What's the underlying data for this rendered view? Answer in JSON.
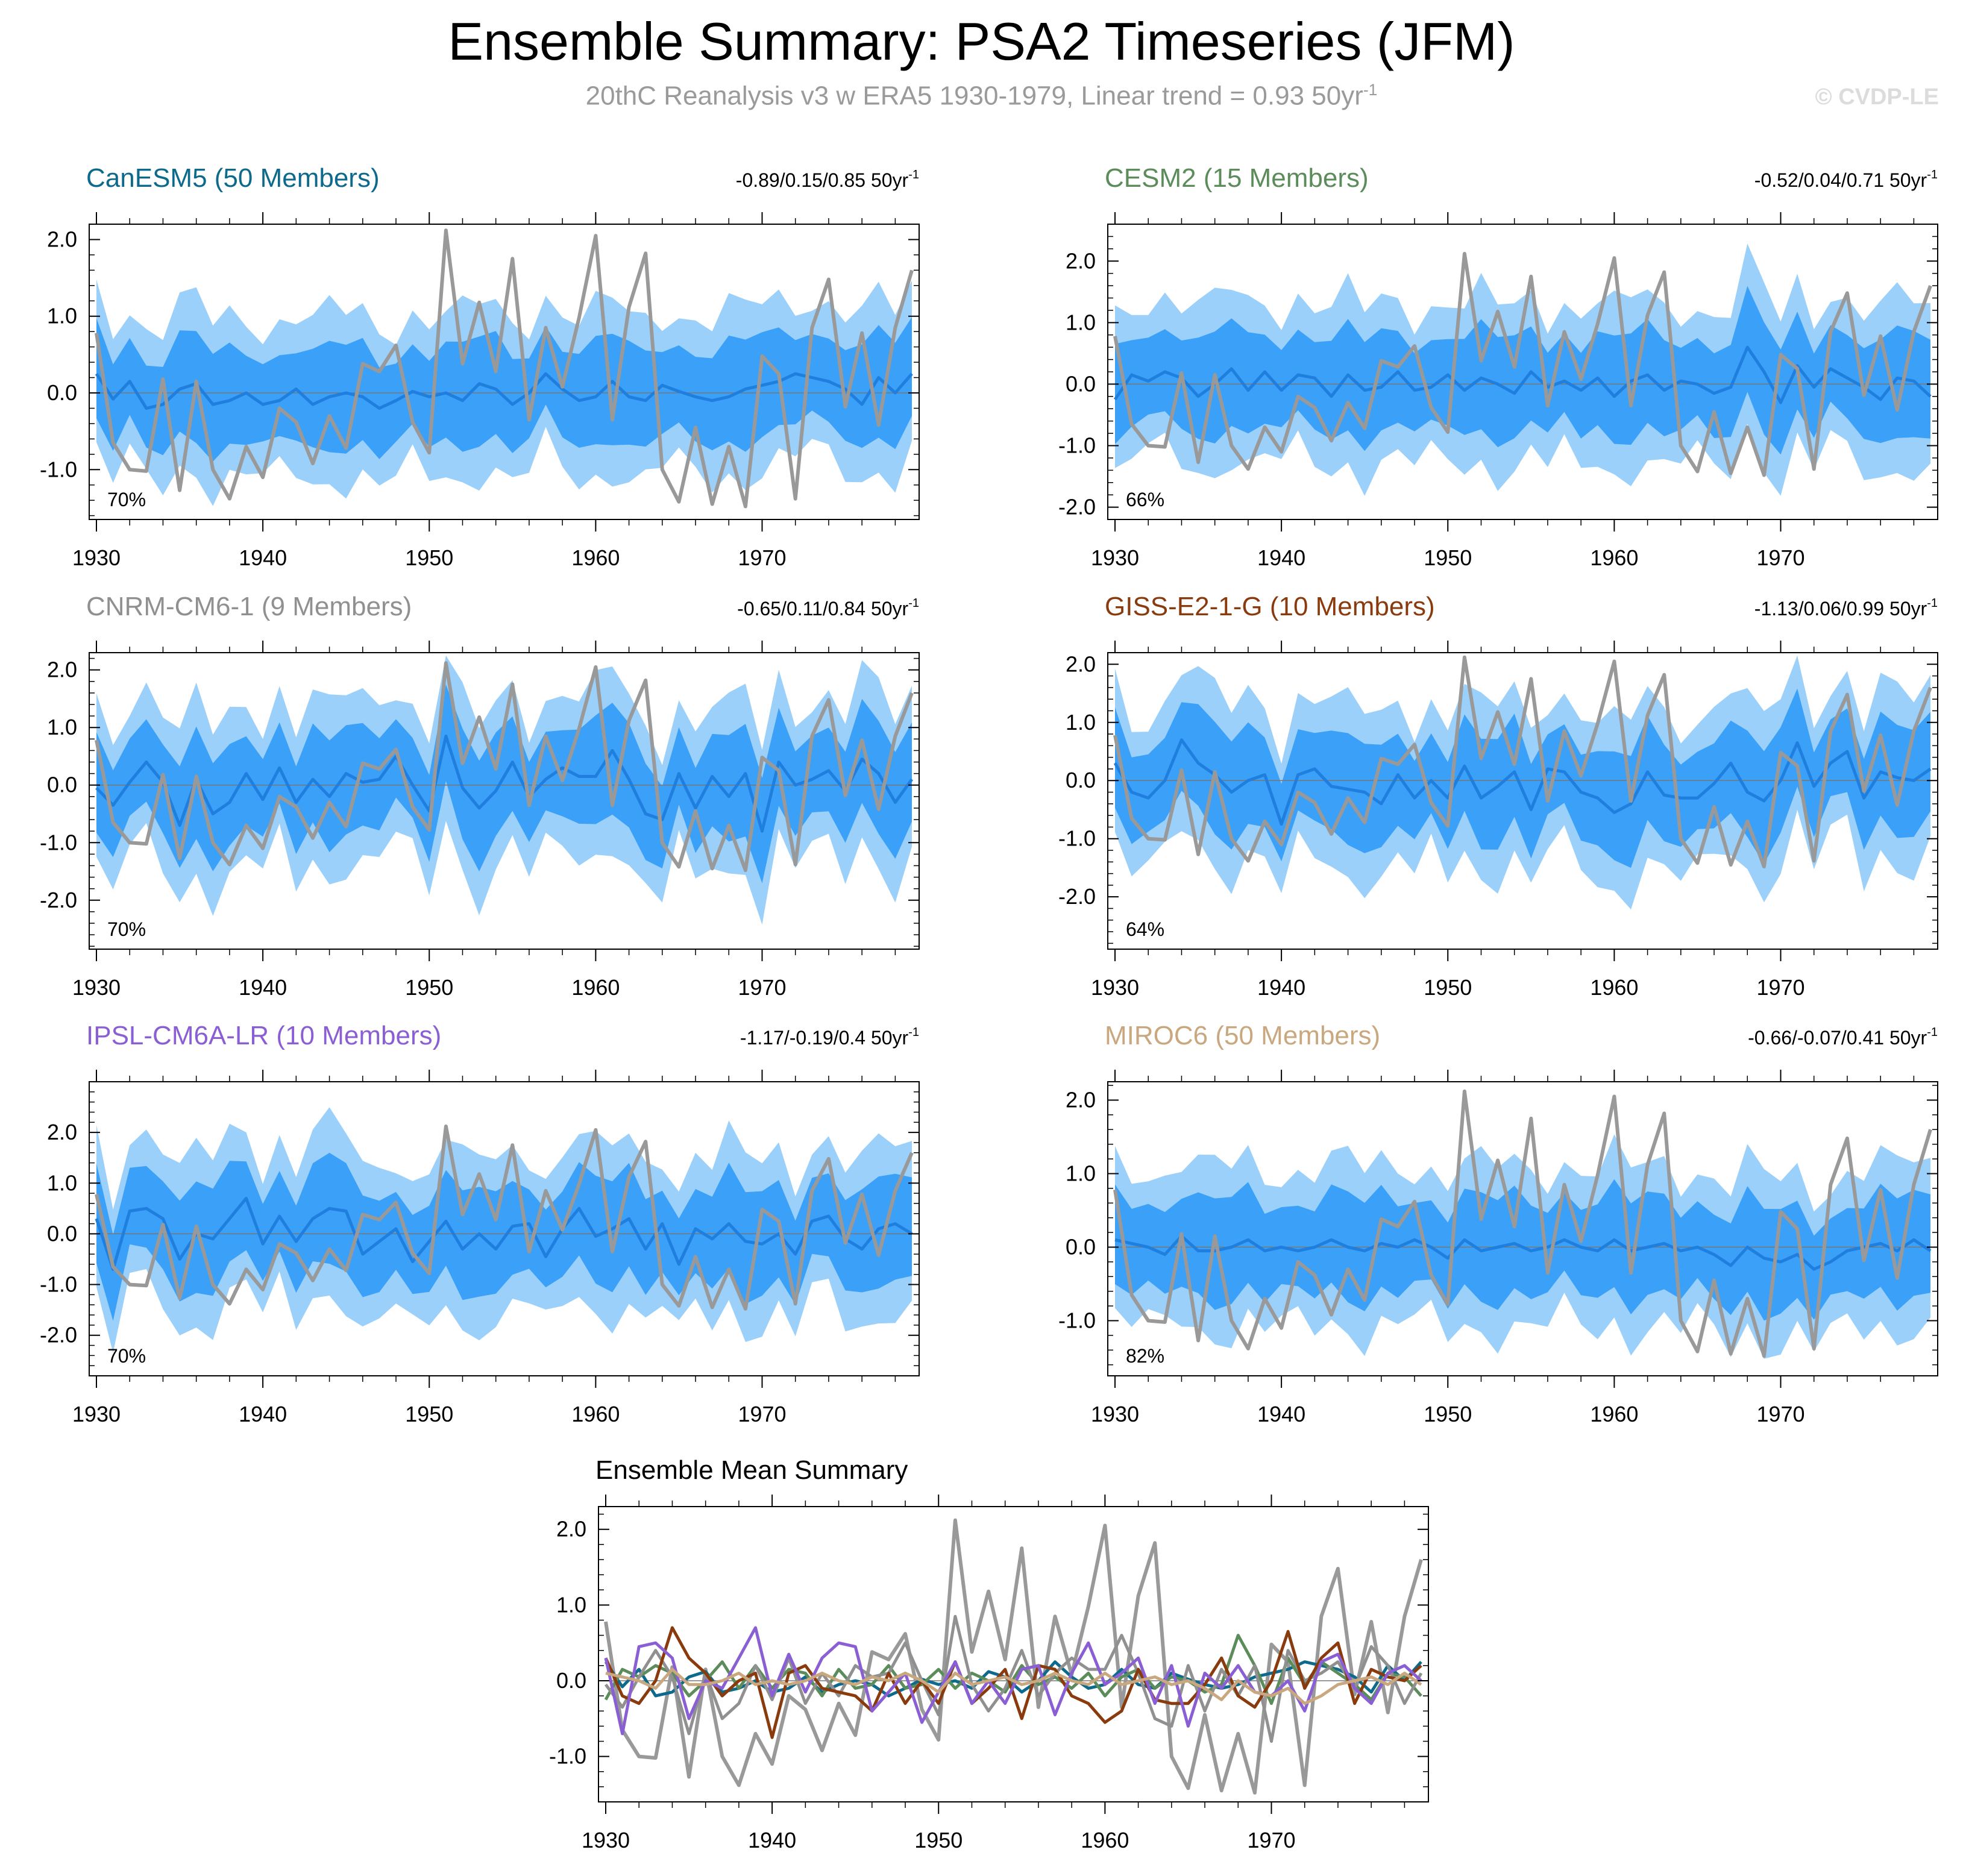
{
  "title": "Ensemble Summary: PSA2 Timeseries (JFM)",
  "subtitle_main": "20thC Reanalysis v3 w ERA5 1930-1979, Linear trend = 0.93 50yr",
  "subtitle_sup": "-1",
  "credit": "© CVDP-LE",
  "colors": {
    "band_outer": "#9bd0fb",
    "band_inner": "#3aa0f8",
    "ens_mean": "#1f7ede",
    "obs": "#999999"
  },
  "chart_data": {
    "type": "line",
    "x": [
      1930,
      1931,
      1932,
      1933,
      1934,
      1935,
      1936,
      1937,
      1938,
      1939,
      1940,
      1941,
      1942,
      1943,
      1944,
      1945,
      1946,
      1947,
      1948,
      1949,
      1950,
      1951,
      1952,
      1953,
      1954,
      1955,
      1956,
      1957,
      1958,
      1959,
      1960,
      1961,
      1962,
      1963,
      1964,
      1965,
      1966,
      1967,
      1968,
      1969,
      1970,
      1971,
      1972,
      1973,
      1974,
      1975,
      1976,
      1977,
      1978,
      1979
    ],
    "x_ticks": [
      "1930",
      "1940",
      "1950",
      "1960",
      "1970"
    ],
    "observed": {
      "name": "20thC Reanalysis v3 w ERA5",
      "values": [
        0.78,
        -0.65,
        -1.0,
        -1.02,
        0.18,
        -1.27,
        0.15,
        -1.0,
        -1.38,
        -0.7,
        -1.1,
        -0.2,
        -0.38,
        -0.92,
        -0.3,
        -0.72,
        0.38,
        0.28,
        0.62,
        -0.38,
        -0.78,
        2.12,
        0.38,
        1.18,
        0.28,
        1.75,
        -0.35,
        0.85,
        0.08,
        0.98,
        2.05,
        -0.35,
        1.12,
        1.82,
        -1.0,
        -1.42,
        -0.45,
        -1.45,
        -0.7,
        -1.48,
        0.48,
        0.25,
        -1.38,
        0.85,
        1.48,
        -0.18,
        0.78,
        -0.42,
        0.85,
        1.6
      ]
    },
    "panels": [
      {
        "name": "CanESM5 (50 Members)",
        "color": "#0e6a8c",
        "trend_text": "-0.89/0.15/0.85 50yr",
        "trend_sup": "-1",
        "percent": "70%",
        "yticks": [
          "2.0",
          "1.0",
          "0.0",
          "-1.0"
        ],
        "ylim": [
          -1.65,
          2.2
        ],
        "mean_values": [
          0.25,
          -0.08,
          0.15,
          -0.2,
          -0.15,
          0.05,
          0.12,
          -0.15,
          -0.1,
          0.0,
          -0.15,
          -0.1,
          0.05,
          -0.15,
          -0.05,
          0.0,
          -0.05,
          -0.2,
          -0.1,
          0.02,
          -0.05,
          0.0,
          -0.1,
          0.12,
          0.05,
          -0.15,
          0.0,
          0.25,
          0.05,
          -0.1,
          -0.05,
          0.15,
          -0.05,
          -0.1,
          0.1,
          0.02,
          -0.05,
          -0.1,
          -0.05,
          0.05,
          0.1,
          0.15,
          0.25,
          0.2,
          0.15,
          0.05,
          -0.15,
          0.2,
          0.0,
          0.25
        ]
      },
      {
        "name": "CESM2 (15 Members)",
        "color": "#5b8c5a",
        "trend_text": "-0.52/0.04/0.71 50yr",
        "trend_sup": "-1",
        "percent": "66%",
        "yticks": [
          "2.0",
          "1.0",
          "0.0",
          "-1.0",
          "-2.0"
        ],
        "ylim": [
          -2.2,
          2.6
        ],
        "mean_values": [
          -0.25,
          0.15,
          0.05,
          0.2,
          0.1,
          -0.2,
          0.0,
          0.25,
          -0.1,
          0.2,
          -0.1,
          0.15,
          0.1,
          -0.2,
          0.15,
          -0.1,
          -0.05,
          0.2,
          -0.1,
          -0.05,
          0.15,
          -0.1,
          0.1,
          0.0,
          -0.15,
          0.2,
          -0.05,
          0.05,
          -0.1,
          0.1,
          -0.2,
          0.05,
          0.15,
          -0.1,
          0.05,
          0.0,
          -0.15,
          -0.05,
          0.6,
          0.2,
          -0.3,
          0.3,
          -0.05,
          0.25,
          0.1,
          -0.05,
          -0.25,
          0.1,
          0.05,
          -0.2
        ]
      },
      {
        "name": "CNRM-CM6-1 (9 Members)",
        "color": "#909090",
        "trend_text": "-0.65/0.11/0.84 50yr",
        "trend_sup": "-1",
        "percent": "70%",
        "yticks": [
          "2.0",
          "1.0",
          "0.0",
          "-1.0",
          "-2.0"
        ],
        "ylim": [
          -2.85,
          2.3
        ],
        "mean_values": [
          -0.05,
          -0.35,
          0.05,
          0.4,
          0.05,
          -0.7,
          0.1,
          -0.5,
          -0.3,
          0.2,
          -0.25,
          0.3,
          -0.3,
          0.1,
          -0.2,
          0.2,
          0.05,
          0.1,
          0.5,
          0.0,
          -0.45,
          0.85,
          -0.05,
          -0.4,
          -0.1,
          0.4,
          -0.2,
          0.1,
          0.3,
          0.15,
          0.15,
          0.6,
          0.1,
          -0.5,
          -0.6,
          0.2,
          -0.4,
          0.15,
          -0.2,
          0.2,
          -0.8,
          0.4,
          0.0,
          0.1,
          0.25,
          -0.1,
          0.45,
          0.2,
          -0.3,
          0.1
        ]
      },
      {
        "name": "GISS-E2-1-G (10 Members)",
        "color": "#8a3b0e",
        "trend_text": "-1.13/0.06/0.99 50yr",
        "trend_sup": "-1",
        "percent": "64%",
        "yticks": [
          "2.0",
          "1.0",
          "0.0",
          "-1.0",
          "-2.0"
        ],
        "ylim": [
          -2.9,
          2.2
        ],
        "mean_values": [
          0.3,
          -0.2,
          -0.3,
          0.0,
          0.7,
          0.3,
          0.1,
          -0.2,
          0.0,
          0.1,
          -0.75,
          0.1,
          0.2,
          -0.1,
          -0.15,
          -0.2,
          -0.4,
          0.1,
          -0.3,
          0.0,
          -0.3,
          0.25,
          -0.3,
          -0.1,
          0.15,
          -0.5,
          0.2,
          0.15,
          -0.2,
          -0.3,
          -0.55,
          -0.4,
          0.15,
          -0.25,
          -0.3,
          -0.3,
          -0.05,
          0.3,
          -0.2,
          -0.35,
          0.0,
          0.65,
          -0.1,
          0.3,
          0.5,
          -0.3,
          0.15,
          0.05,
          0.0,
          0.2
        ]
      },
      {
        "name": "IPSL-CM6A-LR (10 Members)",
        "color": "#8a5fd4",
        "trend_text": "-1.17/-0.19/0.4 50yr",
        "trend_sup": "-1",
        "percent": "70%",
        "yticks": [
          "2.0",
          "1.0",
          "0.0",
          "-1.0",
          "-2.0"
        ],
        "ylim": [
          -2.8,
          3.0
        ],
        "mean_values": [
          0.3,
          -0.7,
          0.45,
          0.5,
          0.3,
          -0.5,
          0.0,
          -0.1,
          0.3,
          0.7,
          -0.2,
          0.35,
          -0.15,
          0.3,
          0.5,
          0.45,
          -0.4,
          -0.15,
          0.1,
          -0.55,
          -0.15,
          0.25,
          -0.3,
          0.0,
          -0.3,
          0.15,
          0.2,
          -0.45,
          0.1,
          0.5,
          -0.05,
          0.1,
          0.3,
          -0.3,
          0.2,
          -0.6,
          0.1,
          -0.1,
          0.2,
          -0.15,
          -0.2,
          0.0,
          -0.4,
          0.25,
          0.35,
          -0.1,
          -0.3,
          0.1,
          0.2,
          0.0
        ]
      },
      {
        "name": "MIROC6 (50 Members)",
        "color": "#c9a77f",
        "trend_text": "-0.66/-0.07/0.41 50yr",
        "trend_sup": "-1",
        "percent": "82%",
        "yticks": [
          "2.0",
          "1.0",
          "0.0",
          "-1.0"
        ],
        "ylim": [
          -1.75,
          2.25
        ],
        "mean_values": [
          0.1,
          0.05,
          0.0,
          -0.1,
          0.15,
          -0.05,
          -0.05,
          0.0,
          0.1,
          -0.05,
          0.0,
          -0.05,
          0.0,
          0.1,
          0.0,
          -0.05,
          0.05,
          0.0,
          0.1,
          0.0,
          -0.15,
          0.1,
          -0.05,
          0.0,
          0.05,
          -0.05,
          0.0,
          0.1,
          0.0,
          -0.05,
          0.1,
          -0.05,
          0.0,
          0.05,
          -0.05,
          0.0,
          -0.1,
          -0.25,
          0.0,
          -0.15,
          -0.2,
          -0.1,
          -0.3,
          -0.2,
          -0.05,
          0.0,
          0.05,
          -0.05,
          0.1,
          -0.05
        ]
      }
    ],
    "summary": {
      "title": "Ensemble Mean Summary",
      "yticks": [
        "2.0",
        "1.0",
        "0.0",
        "-1.0"
      ],
      "ylim": [
        -1.6,
        2.3
      ]
    }
  }
}
